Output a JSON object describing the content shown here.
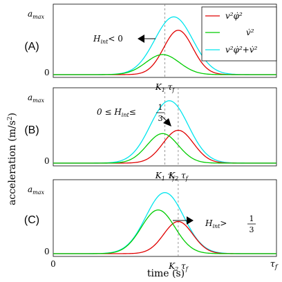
{
  "figure": {
    "ylabel": "acceleration (m/s",
    "ylabel_sup": "2",
    "ylabel_close": ")",
    "xlabel": "time (s)",
    "x_start_label": "0",
    "x_end_label": "τ",
    "x_end_sub": "f"
  },
  "legend": {
    "placement": "top-right of panel A",
    "entries": [
      {
        "label": "v²φ̇²",
        "color": "#e00000"
      },
      {
        "label": "v̇²",
        "color": "#00cc00"
      },
      {
        "label": "v²φ̇²+v̇²",
        "color": "#00e5ee"
      }
    ]
  },
  "colors": {
    "axes": "#000000",
    "dashed_line": "#808080"
  },
  "chart_data": [
    {
      "type": "line",
      "panel": "(A)",
      "ytick_top": "a",
      "ytick_top_sub": "max",
      "ytick_bottom": "0",
      "annotation": "H",
      "annotation_sub": "int",
      "annotation_rest": "< 0",
      "arrow": "left",
      "vline_labels": [
        {
          "main": "K",
          "sub": "1",
          "rest": " τ",
          "rest_sub": "f",
          "x": 0.5
        }
      ],
      "xlim": [
        0,
        1
      ],
      "ylim": [
        0,
        1
      ],
      "series": [
        {
          "color": "#00e5ee",
          "peak_x": 0.54,
          "peak_y": 0.95,
          "width": 0.085
        },
        {
          "color": "#e00000",
          "peak_x": 0.56,
          "peak_y": 0.73,
          "width": 0.065
        },
        {
          "color": "#00cc00",
          "peak_x": 0.49,
          "peak_y": 0.33,
          "width": 0.075
        }
      ]
    },
    {
      "type": "line",
      "panel": "(B)",
      "ytick_top": "a",
      "ytick_top_sub": "max",
      "ytick_bottom": "0",
      "annotation": "0 ≤ H",
      "annotation_sub": "int",
      "annotation_rest": "≤",
      "annotation_frac_num": "1",
      "annotation_frac_den": "3",
      "arrow": "down-right",
      "vline_labels": [
        {
          "main": "K",
          "sub": "1",
          "rest": " τ",
          "rest_sub": "f",
          "x": 0.5
        },
        {
          "main": "K",
          "sub": "2",
          "rest": " τ",
          "rest_sub": "f",
          "x": 0.56
        }
      ],
      "xlim": [
        0,
        1
      ],
      "ylim": [
        0,
        1
      ],
      "series": [
        {
          "color": "#00e5ee",
          "peak_x": 0.52,
          "peak_y": 0.95,
          "width": 0.085
        },
        {
          "color": "#e00000",
          "peak_x": 0.56,
          "peak_y": 0.5,
          "width": 0.068
        },
        {
          "color": "#00cc00",
          "peak_x": 0.49,
          "peak_y": 0.45,
          "width": 0.07
        }
      ]
    },
    {
      "type": "line",
      "panel": "(C)",
      "ytick_top": "a",
      "ytick_top_sub": "max",
      "ytick_bottom": "0",
      "annotation": "H",
      "annotation_sub": "int",
      "annotation_rest": ">",
      "annotation_frac_num": "1",
      "annotation_frac_den": "3",
      "arrow": "right",
      "vline_labels": [
        {
          "main": "K",
          "sub": "2",
          "rest": " τ",
          "rest_sub": "f",
          "x": 0.56
        }
      ],
      "xlim": [
        0,
        1
      ],
      "ylim": [
        0,
        1
      ],
      "series": [
        {
          "color": "#00e5ee",
          "peak_x": 0.5,
          "peak_y": 0.95,
          "width": 0.085
        },
        {
          "color": "#e00000",
          "peak_x": 0.56,
          "peak_y": 0.5,
          "width": 0.065
        },
        {
          "color": "#00cc00",
          "peak_x": 0.47,
          "peak_y": 0.68,
          "width": 0.075
        }
      ]
    }
  ]
}
